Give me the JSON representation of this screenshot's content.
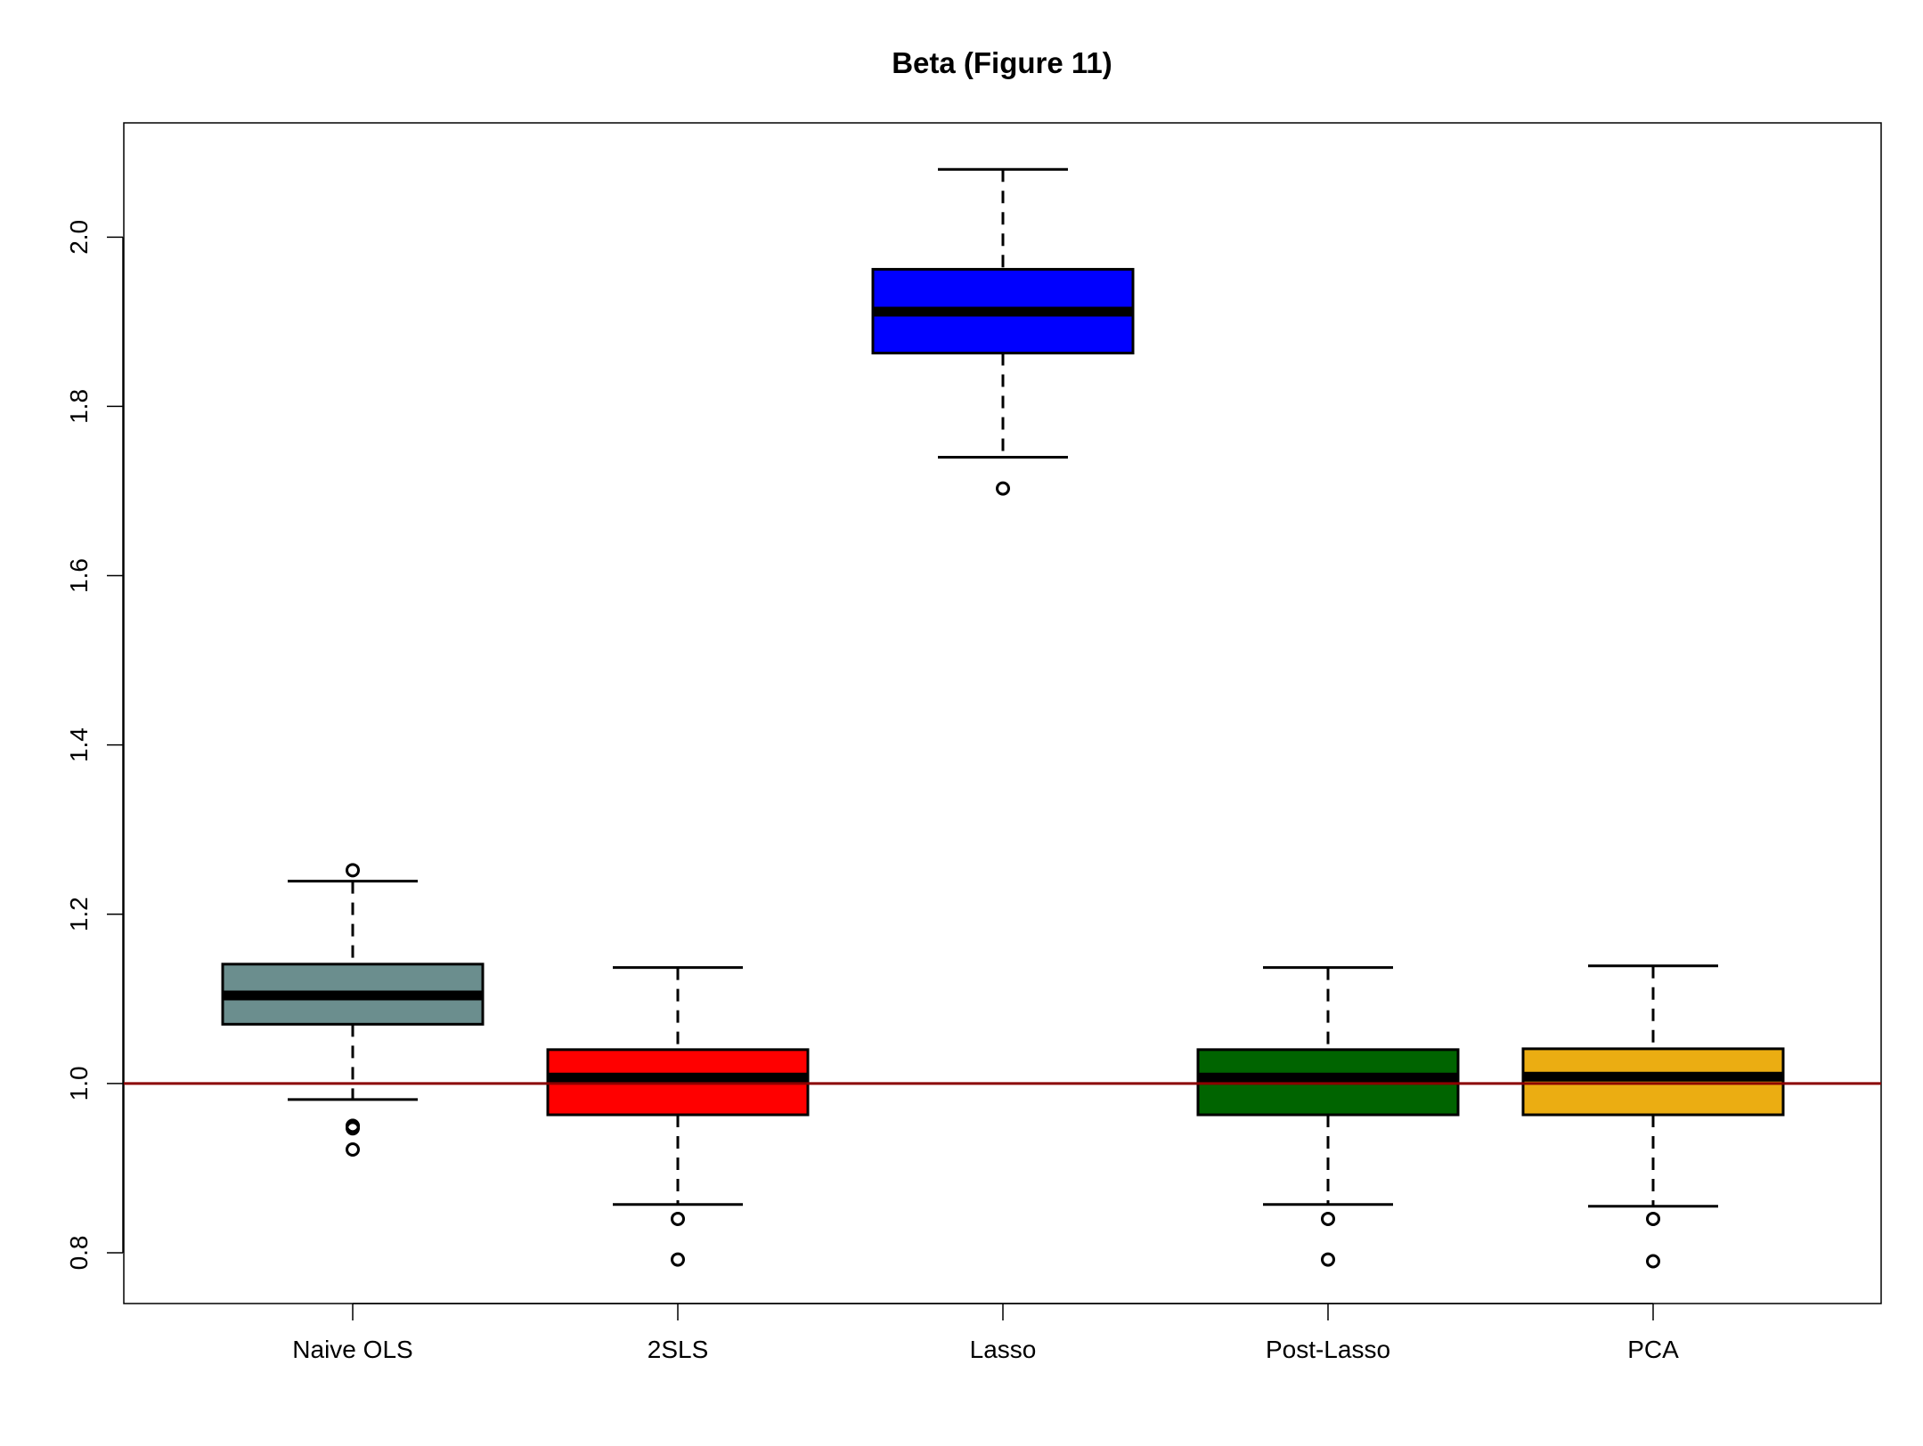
{
  "chart_data": {
    "type": "boxplot",
    "title": "Beta  (Figure 11)",
    "xlabel": "",
    "ylabel": "",
    "ylim": [
      0.74,
      2.135
    ],
    "yticks": [
      "0.8",
      "1.0",
      "1.2",
      "1.4",
      "1.6",
      "1.8",
      "2.0"
    ],
    "grid": false,
    "legend": "none",
    "reference_line": {
      "y": 1.0,
      "color": "#8B0000"
    },
    "categories": [
      "Naive OLS",
      "2SLS",
      "Lasso",
      "Post-Lasso",
      "PCA"
    ],
    "boxes": [
      {
        "label": "Naive OLS",
        "color": "#6B8E8E",
        "whisker_low": 0.981,
        "q1": 1.07,
        "median": 1.104,
        "q3": 1.141,
        "whisker_high": 1.239,
        "outliers": [
          1.252,
          0.95,
          0.947,
          0.922
        ]
      },
      {
        "label": "2SLS",
        "color": "#FF0000",
        "whisker_low": 0.857,
        "q1": 0.963,
        "median": 1.007,
        "q3": 1.04,
        "whisker_high": 1.137,
        "outliers": [
          0.84,
          0.792
        ]
      },
      {
        "label": "Lasso",
        "color": "#0000FF",
        "whisker_low": 1.74,
        "q1": 1.863,
        "median": 1.912,
        "q3": 1.962,
        "whisker_high": 2.08,
        "outliers": [
          1.703
        ]
      },
      {
        "label": "Post-Lasso",
        "color": "#006400",
        "whisker_low": 0.857,
        "q1": 0.963,
        "median": 1.007,
        "q3": 1.04,
        "whisker_high": 1.137,
        "outliers": [
          0.84,
          0.792
        ]
      },
      {
        "label": "PCA",
        "color": "#EBAD12",
        "whisker_low": 0.855,
        "q1": 0.963,
        "median": 1.008,
        "q3": 1.041,
        "whisker_high": 1.139,
        "outliers": [
          0.84,
          0.79
        ]
      }
    ]
  }
}
